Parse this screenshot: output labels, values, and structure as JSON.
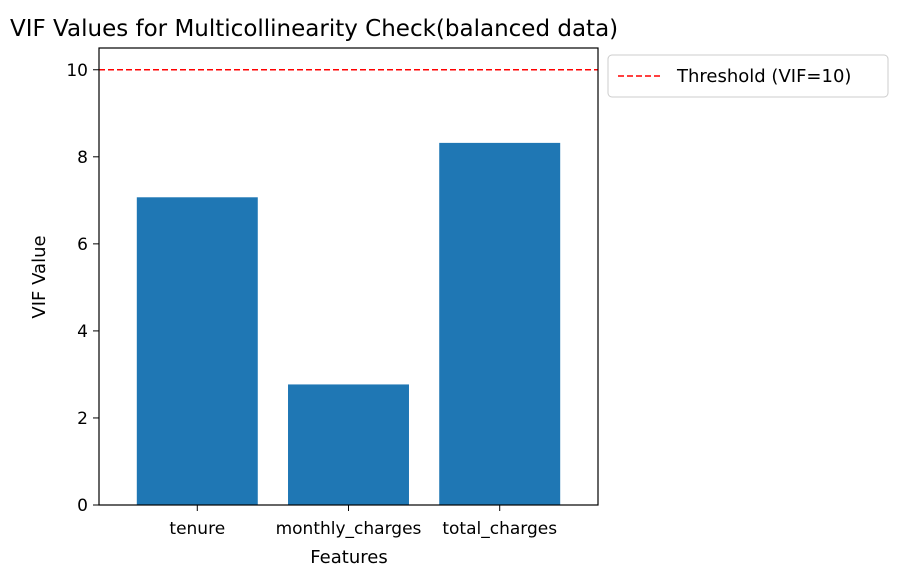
{
  "chart_data": {
    "type": "bar",
    "title": "VIF Values for Multicollinearity Check(balanced data)",
    "xlabel": "Features",
    "ylabel": "VIF Value",
    "categories": [
      "tenure",
      "monthly_charges",
      "total_charges"
    ],
    "values": [
      7.07,
      2.77,
      8.32
    ],
    "ylim": [
      0,
      10.5
    ],
    "yticks": [
      0,
      2,
      4,
      6,
      8,
      10
    ],
    "bar_color": "#1f77b4",
    "grid": false,
    "threshold": {
      "value": 10,
      "label": "Threshold (VIF=10)",
      "color": "#ff0000",
      "style": "dashed"
    },
    "legend": {
      "placement": "outside-top-right",
      "entries": [
        "Threshold (VIF=10)"
      ]
    }
  }
}
